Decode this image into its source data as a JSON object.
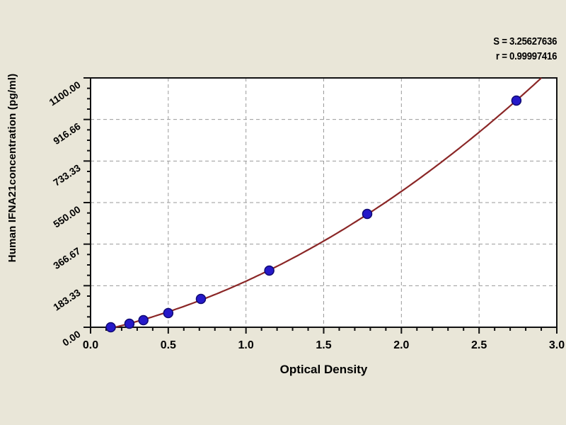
{
  "chart_data": {
    "type": "scatter",
    "title": "",
    "xlabel": "Optical Density",
    "ylabel": "Human IFNA21concentration (pg/ml)",
    "xlim": [
      0,
      3.0
    ],
    "ylim": [
      0,
      1100
    ],
    "x_ticks": [
      0.0,
      0.5,
      1.0,
      1.5,
      2.0,
      2.5,
      3.0
    ],
    "x_tick_labels": [
      "0.0",
      "0.5",
      "1.0",
      "1.5",
      "2.0",
      "2.5",
      "3.0"
    ],
    "x_minor_step": 0.1,
    "y_ticks": [
      0,
      183.33,
      366.67,
      550.0,
      733.33,
      916.66,
      1100.0
    ],
    "y_tick_labels": [
      "0.00",
      "183.33",
      "366.67",
      "550.00",
      "733.33",
      "916.66",
      "1100.00"
    ],
    "y_minor_step": 45.833,
    "grid": "dashed-major-gridlines",
    "legend": "none",
    "annotations": {
      "s_label": "S = 3.25627636",
      "r_label": "r = 0.99997416"
    },
    "series": [
      {
        "name": "standard-points",
        "marker": "circle",
        "points": [
          {
            "x": 0.13,
            "y": 0
          },
          {
            "x": 0.25,
            "y": 15.6
          },
          {
            "x": 0.34,
            "y": 31.2
          },
          {
            "x": 0.5,
            "y": 62.5
          },
          {
            "x": 0.71,
            "y": 125
          },
          {
            "x": 1.15,
            "y": 250
          },
          {
            "x": 1.78,
            "y": 500
          },
          {
            "x": 2.74,
            "y": 1000
          }
        ]
      }
    ],
    "fit_curve": {
      "name": "regression-curve",
      "model": "quadratic-least-squares",
      "x_start": 0.13,
      "x_end": 3.0
    },
    "colors": {
      "background": "#e9e6d8",
      "plot_background": "#ffffff",
      "frame": "#111111",
      "grid": "#9a9a9a",
      "curve": "#8b2727",
      "marker_fill": "#2619c9",
      "marker_stroke": "#0f0a72",
      "text": "#000000"
    }
  }
}
